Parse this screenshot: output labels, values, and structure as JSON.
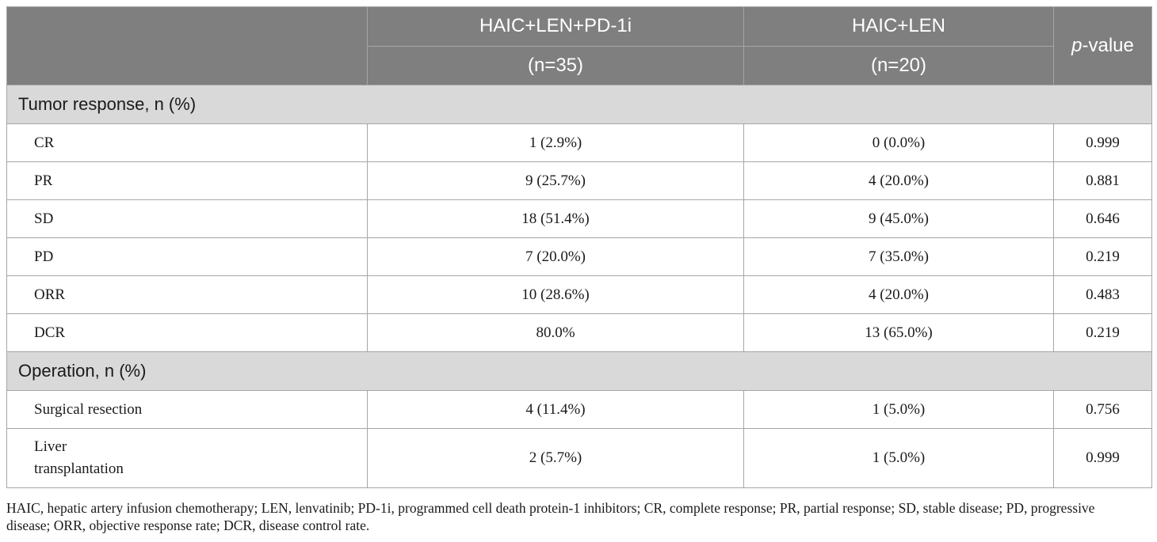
{
  "header": {
    "group1_name": "HAIC+LEN+PD-1i",
    "group1_n": "(n=35)",
    "group2_name": "HAIC+LEN",
    "group2_n": "(n=20)",
    "pvalue_p": "p",
    "pvalue_suffix": "-value"
  },
  "sections": [
    {
      "title": "Tumor response, n (%)",
      "rows": [
        {
          "label": "CR",
          "g1": "1 (2.9%)",
          "g2": "0 (0.0%)",
          "p": "0.999"
        },
        {
          "label": "PR",
          "g1": "9 (25.7%)",
          "g2": "4 (20.0%)",
          "p": "0.881"
        },
        {
          "label": "SD",
          "g1": "18 (51.4%)",
          "g2": "9 (45.0%)",
          "p": "0.646"
        },
        {
          "label": "PD",
          "g1": "7 (20.0%)",
          "g2": "7 (35.0%)",
          "p": "0.219"
        },
        {
          "label": "ORR",
          "g1": "10 (28.6%)",
          "g2": "4 (20.0%)",
          "p": "0.483"
        },
        {
          "label": "DCR",
          "g1": "80.0%",
          "g2": "13 (65.0%)",
          "p": "0.219"
        }
      ]
    },
    {
      "title": "Operation, n (%)",
      "rows": [
        {
          "label": "Surgical resection",
          "g1": "4 (11.4%)",
          "g2": "1 (5.0%)",
          "p": "0.756"
        },
        {
          "label_line1": "Liver",
          "label_line2": "transplantation",
          "g1": "2 (5.7%)",
          "g2": "1 (5.0%)",
          "p": "0.999"
        }
      ]
    }
  ],
  "footnote": {
    "line1": "HAIC, hepatic artery infusion chemotherapy; LEN, lenvatinib; PD-1i, programmed cell death protein-1 inhibitors; CR, complete response; PR, partial response; SD, stable disease; PD, progressive",
    "line2": "disease; ORR, objective response rate; DCR, disease control rate."
  }
}
